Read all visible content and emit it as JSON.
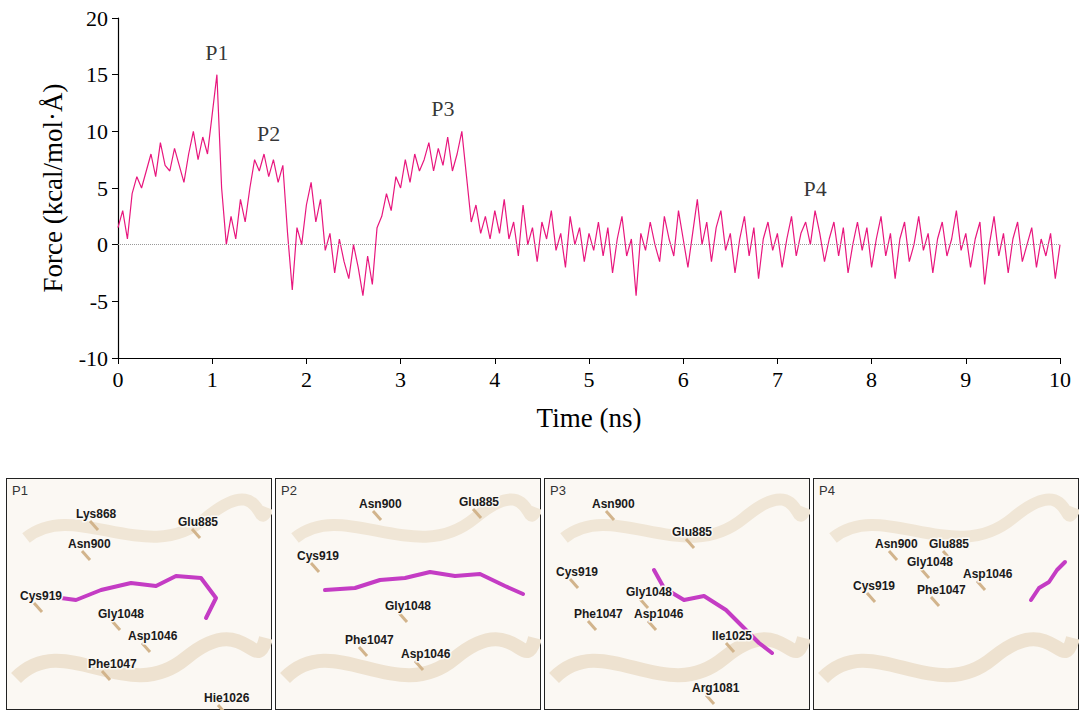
{
  "chart_data": {
    "type": "line",
    "x_label": "Time (ns)",
    "y_label": "Force (kcal/mol·Å)",
    "xlim": [
      0,
      10
    ],
    "xticks": [
      0,
      1,
      2,
      3,
      4,
      5,
      6,
      7,
      8,
      9,
      10
    ],
    "ylim": [
      -10,
      20
    ],
    "yticks": [
      -10,
      -5,
      0,
      5,
      10,
      15,
      20
    ],
    "grid": false,
    "color": "#e8177e",
    "reference_lines": [
      0
    ],
    "annotations": [
      {
        "text": "P1",
        "x": 1.05,
        "y": 17
      },
      {
        "text": "P2",
        "x": 1.6,
        "y": 9.8
      },
      {
        "text": "P3",
        "x": 3.45,
        "y": 12
      },
      {
        "text": "P4",
        "x": 7.4,
        "y": 5
      }
    ],
    "x": [
      0,
      0.05,
      0.1,
      0.15,
      0.2,
      0.25,
      0.3,
      0.35,
      0.4,
      0.45,
      0.5,
      0.55,
      0.6,
      0.65,
      0.7,
      0.75,
      0.8,
      0.85,
      0.9,
      0.95,
      1,
      1.05,
      1.1,
      1.15,
      1.2,
      1.25,
      1.3,
      1.35,
      1.4,
      1.45,
      1.5,
      1.55,
      1.6,
      1.65,
      1.7,
      1.75,
      1.8,
      1.85,
      1.9,
      1.95,
      2,
      2.05,
      2.1,
      2.15,
      2.2,
      2.25,
      2.3,
      2.35,
      2.4,
      2.45,
      2.5,
      2.55,
      2.6,
      2.65,
      2.7,
      2.75,
      2.8,
      2.85,
      2.9,
      2.95,
      3,
      3.05,
      3.1,
      3.15,
      3.2,
      3.25,
      3.3,
      3.35,
      3.4,
      3.45,
      3.5,
      3.55,
      3.6,
      3.65,
      3.7,
      3.75,
      3.8,
      3.85,
      3.9,
      3.95,
      4,
      4.05,
      4.1,
      4.15,
      4.2,
      4.25,
      4.3,
      4.35,
      4.4,
      4.45,
      4.5,
      4.55,
      4.6,
      4.65,
      4.7,
      4.75,
      4.8,
      4.85,
      4.9,
      4.95,
      5,
      5.05,
      5.1,
      5.15,
      5.2,
      5.25,
      5.3,
      5.35,
      5.4,
      5.45,
      5.5,
      5.55,
      5.6,
      5.65,
      5.7,
      5.75,
      5.8,
      5.85,
      5.9,
      5.95,
      6,
      6.05,
      6.1,
      6.15,
      6.2,
      6.25,
      6.3,
      6.35,
      6.4,
      6.45,
      6.5,
      6.55,
      6.6,
      6.65,
      6.7,
      6.75,
      6.8,
      6.85,
      6.9,
      6.95,
      7,
      7.05,
      7.1,
      7.15,
      7.2,
      7.25,
      7.3,
      7.35,
      7.4,
      7.45,
      7.5,
      7.55,
      7.6,
      7.65,
      7.7,
      7.75,
      7.8,
      7.85,
      7.9,
      7.95,
      8,
      8.05,
      8.1,
      8.15,
      8.2,
      8.25,
      8.3,
      8.35,
      8.4,
      8.45,
      8.5,
      8.55,
      8.6,
      8.65,
      8.7,
      8.75,
      8.8,
      8.85,
      8.9,
      8.95,
      9,
      9.05,
      9.1,
      9.15,
      9.2,
      9.25,
      9.3,
      9.35,
      9.4,
      9.45,
      9.5,
      9.55,
      9.6,
      9.65,
      9.7,
      9.75,
      9.8,
      9.85,
      9.9,
      9.95,
      10
    ],
    "values": [
      1.5,
      3.0,
      0.5,
      4.5,
      6.0,
      5.0,
      6.5,
      8.0,
      6.0,
      9.0,
      7.0,
      6.5,
      8.5,
      7.0,
      5.5,
      8.0,
      10.0,
      7.5,
      9.5,
      8.0,
      11.5,
      15.0,
      5.0,
      0.0,
      2.5,
      0.5,
      4.0,
      2.0,
      5.0,
      7.5,
      6.5,
      8.0,
      6.0,
      7.5,
      5.5,
      7.0,
      1.0,
      -4.0,
      1.5,
      0.0,
      3.5,
      5.5,
      2.0,
      4.0,
      -0.5,
      1.0,
      -2.5,
      0.5,
      -1.5,
      -3.0,
      0.0,
      -2.0,
      -4.5,
      -1.0,
      -3.5,
      1.5,
      2.5,
      4.5,
      3.0,
      6.0,
      5.0,
      7.5,
      5.5,
      8.0,
      6.5,
      7.5,
      9.0,
      6.5,
      8.5,
      7.0,
      9.5,
      6.5,
      8.0,
      10.0,
      6.0,
      2.0,
      3.5,
      1.0,
      2.5,
      0.5,
      3.0,
      1.0,
      4.0,
      0.5,
      2.0,
      -1.0,
      3.5,
      0.0,
      1.5,
      -1.5,
      2.0,
      0.5,
      3.0,
      -0.5,
      1.0,
      -2.0,
      2.5,
      0.0,
      1.5,
      -1.5,
      1.0,
      -0.5,
      2.0,
      -1.0,
      1.5,
      -2.5,
      0.5,
      2.5,
      -1.0,
      0.5,
      -4.5,
      1.0,
      -0.5,
      2.0,
      0.0,
      -1.5,
      2.5,
      0.5,
      -1.0,
      3.0,
      0.5,
      -2.0,
      1.0,
      4.0,
      0.0,
      2.0,
      -1.5,
      1.5,
      3.0,
      -0.5,
      1.0,
      -2.5,
      0.5,
      2.5,
      -1.0,
      1.5,
      -3.0,
      0.5,
      2.0,
      -0.5,
      1.0,
      -2.0,
      0.5,
      2.5,
      -1.0,
      1.0,
      2.0,
      0.0,
      3.0,
      1.0,
      -1.5,
      0.5,
      2.0,
      -1.0,
      1.5,
      -2.5,
      0.0,
      2.0,
      -0.5,
      1.5,
      -2.0,
      0.5,
      2.5,
      -1.0,
      1.0,
      -3.0,
      0.5,
      2.0,
      -1.5,
      0.0,
      2.5,
      -0.5,
      1.0,
      -2.5,
      0.5,
      2.0,
      -1.0,
      0.5,
      3.0,
      -0.5,
      1.0,
      -2.0,
      0.5,
      2.0,
      -3.5,
      0.0,
      2.5,
      -1.0,
      1.0,
      -2.5,
      0.5,
      2.0,
      -1.5,
      0.0,
      1.5,
      -2.0,
      0.5,
      -1.0,
      1.0,
      -3.0,
      0.0
    ],
    "panels": [
      {
        "label": "P1",
        "residues": [
          "Lys868",
          "Asn900",
          "Glu885",
          "Cys919",
          "Gly1048",
          "Asp1046",
          "Phe1047",
          "Hie1026"
        ]
      },
      {
        "label": "P2",
        "residues": [
          "Asn900",
          "Glu885",
          "Cys919",
          "Gly1048",
          "Phe1047",
          "Asp1046"
        ]
      },
      {
        "label": "P3",
        "residues": [
          "Asn900",
          "Glu885",
          "Cys919",
          "Gly1048",
          "Phe1047",
          "Asp1046",
          "Ile1025",
          "Arg1081"
        ]
      },
      {
        "label": "P4",
        "residues": [
          "Asn900",
          "Glu885",
          "Gly1048",
          "Cys919",
          "Phe1047",
          "Asp1046"
        ]
      }
    ]
  }
}
